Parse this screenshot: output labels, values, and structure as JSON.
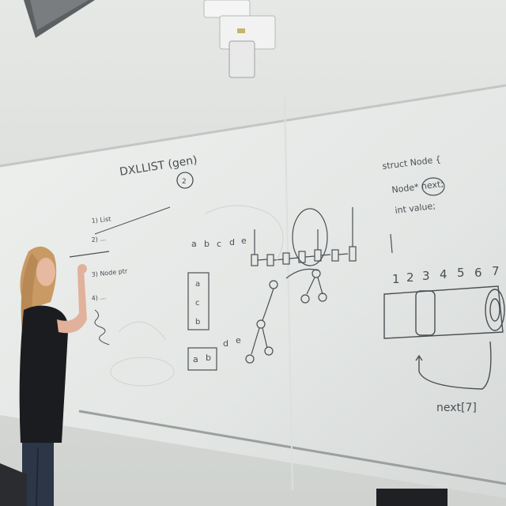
{
  "scene": {
    "board_color": "#e9ecea",
    "ink_color": "#4a4f55",
    "wall_color": "#d4d7d3"
  },
  "whiteboard": {
    "title": "DXLLIST (gen)",
    "title_note": "2",
    "struct_lines": [
      "struct Node {",
      "Node* next;",
      "int value;"
    ],
    "array_indices": [
      "1",
      "2",
      "3",
      "4",
      "5",
      "6",
      "7"
    ],
    "next_label": "next[7]",
    "list_header": [
      "a",
      "b",
      "c",
      "d",
      "e"
    ],
    "stack_letters": [
      "a",
      "c",
      "b"
    ],
    "bottom_letters": [
      "a",
      "b",
      "d",
      "e"
    ],
    "left_notes": [
      "1) List",
      "2) ...",
      "3) Node ptr",
      "4) ..."
    ]
  }
}
